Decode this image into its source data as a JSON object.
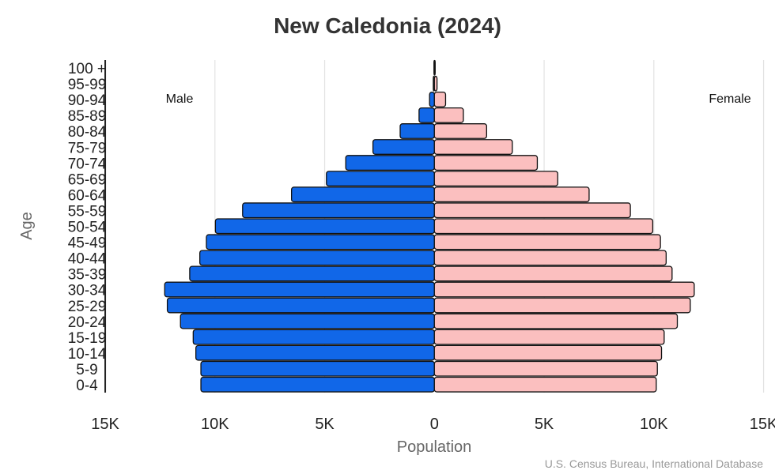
{
  "chart_data": {
    "type": "bar",
    "orientation": "horizontal-pyramid",
    "title": "New Caledonia (2024)",
    "xlabel": "Population",
    "ylabel": "Age",
    "source": "U.S. Census Bureau, International Database",
    "xlim": [
      -15000,
      15000
    ],
    "x_ticks": [
      {
        "value": -15000,
        "label": "15K"
      },
      {
        "value": -10000,
        "label": "10K"
      },
      {
        "value": -5000,
        "label": "5K"
      },
      {
        "value": 0,
        "label": "0"
      },
      {
        "value": 5000,
        "label": "5K"
      },
      {
        "value": 10000,
        "label": "10K"
      },
      {
        "value": 15000,
        "label": "15K"
      }
    ],
    "grid": true,
    "categories": [
      "100 +",
      "95-99",
      "90-94",
      "85-89",
      "80-84",
      "75-79",
      "70-74",
      "65-69",
      "60-64",
      "55-59",
      "50-54",
      "45-49",
      "40-44",
      "35-39",
      "30-34",
      "25-29",
      "20-24",
      "15-19",
      "10-14",
      "5-9",
      "0-4"
    ],
    "series": [
      {
        "name": "Male",
        "color": "#1167e8",
        "values": [
          20,
          50,
          220,
          700,
          1560,
          2800,
          4040,
          4920,
          6510,
          8740,
          9980,
          10390,
          10690,
          11150,
          12290,
          12170,
          11570,
          10990,
          10870,
          10640,
          10640
        ]
      },
      {
        "name": "Female",
        "color": "#fbbfbf",
        "values": [
          20,
          120,
          510,
          1320,
          2380,
          3550,
          4690,
          5620,
          7050,
          8930,
          9950,
          10300,
          10560,
          10830,
          11840,
          11660,
          11070,
          10470,
          10350,
          10160,
          10110
        ]
      }
    ]
  }
}
